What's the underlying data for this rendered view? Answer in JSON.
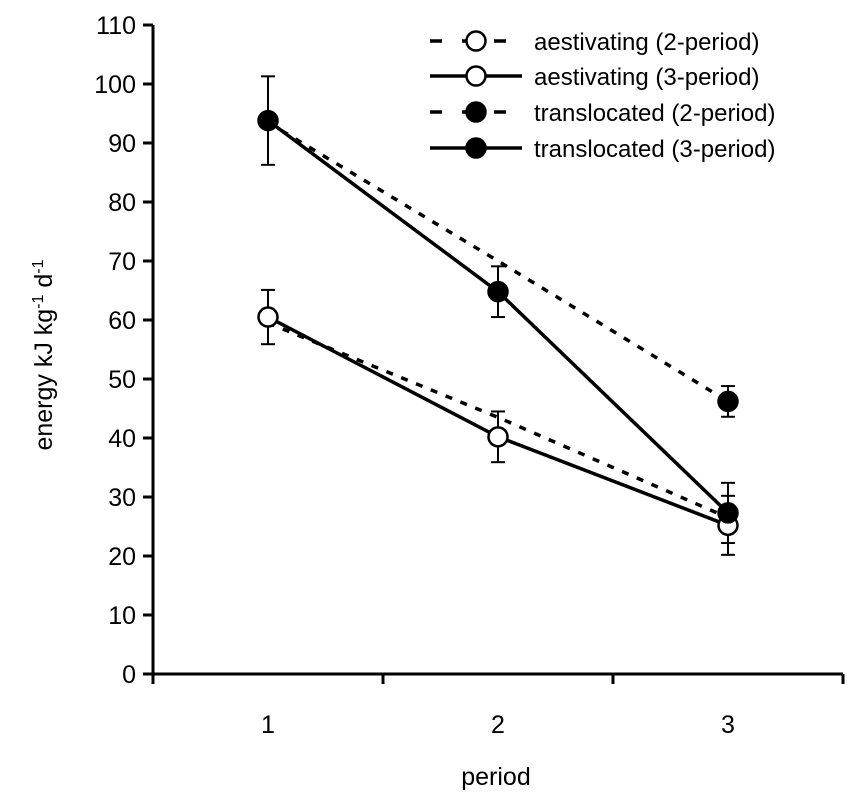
{
  "chart_data": {
    "type": "line",
    "title": "",
    "xlabel": "period",
    "ylabel": {
      "base": "energy kJ kg",
      "exp1": "-1",
      "mid": " d",
      "exp2": "-1"
    },
    "x": [
      1,
      2,
      3
    ],
    "x_ticks": [
      "1",
      "2",
      "3"
    ],
    "xlim": [
      0.5,
      3.5
    ],
    "ylim": [
      0,
      110
    ],
    "y_ticks": [
      0,
      10,
      20,
      30,
      40,
      50,
      60,
      70,
      80,
      90,
      100,
      110
    ],
    "grid": false,
    "legend_position": "top-right",
    "series": [
      {
        "name": "aestivating (2-period)",
        "line": "dashed",
        "marker": "open",
        "values": [
          59.5,
          43.5,
          26.5
        ],
        "errors": [
          null,
          null,
          null
        ]
      },
      {
        "name": "aestivating (3-period)",
        "line": "solid",
        "marker": "open",
        "values": [
          60.5,
          40.2,
          25.2
        ],
        "errors": [
          4.6,
          4.3,
          5.0
        ]
      },
      {
        "name": "translocated (2-period)",
        "line": "dashed",
        "marker": "filled",
        "values": [
          93.5,
          70.0,
          46.2
        ],
        "errors": [
          null,
          null,
          2.6
        ]
      },
      {
        "name": "translocated (3-period)",
        "line": "solid",
        "marker": "filled",
        "values": [
          93.8,
          64.8,
          27.3
        ],
        "errors": [
          7.5,
          4.3,
          5.1
        ]
      }
    ]
  }
}
